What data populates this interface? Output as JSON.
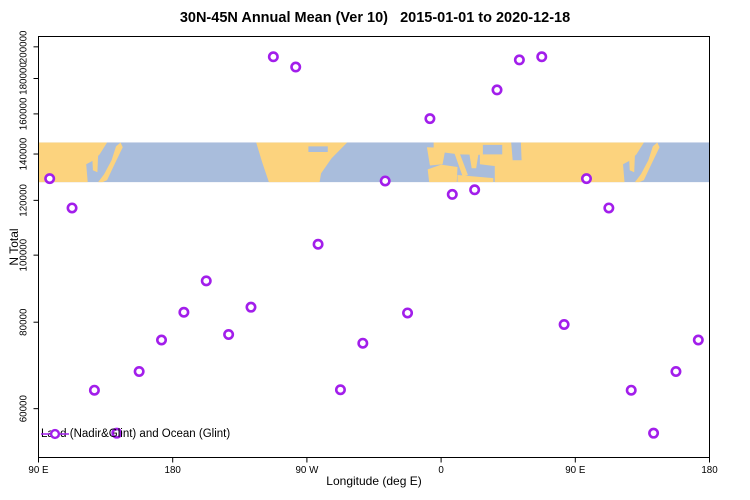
{
  "title": "30N-45N Annual Mean (Ver 10)   2015-01-01 to 2020-12-18",
  "legend": {
    "label": "Land (Nadir&Glint) and Ocean (Glint)"
  },
  "chart_data": {
    "type": "scatter",
    "title": "30N-45N Annual Mean (Ver 10)   2015-01-01 to 2020-12-18",
    "xlabel": "Longitude (deg E)",
    "ylabel": "N Total",
    "x_range": [
      90,
      540
    ],
    "y_range": [
      51000,
      207000
    ],
    "y_scale": "log",
    "grid": false,
    "legend_position": "bottom-left",
    "marker": {
      "shape": "open-circle",
      "color": "#A21EEB",
      "radius": 4.2,
      "stroke_width": 2.6
    },
    "x_ticks": [
      {
        "value": 90,
        "label": "90 E"
      },
      {
        "value": 180,
        "label": "180"
      },
      {
        "value": 270,
        "label": "90 W"
      },
      {
        "value": 360,
        "label": "0"
      },
      {
        "value": 450,
        "label": "90 E"
      },
      {
        "value": 540,
        "label": "180"
      }
    ],
    "y_ticks": [
      {
        "value": 60000,
        "label": "60000"
      },
      {
        "value": 80000,
        "label": "80000"
      },
      {
        "value": 100000,
        "label": "100000"
      },
      {
        "value": 120000,
        "label": "120000"
      },
      {
        "value": 140000,
        "label": "140000"
      },
      {
        "value": 160000,
        "label": "160000"
      },
      {
        "value": 180000,
        "label": "180000"
      },
      {
        "value": 200000,
        "label": "200000"
      }
    ],
    "points": [
      {
        "lon": 97.5,
        "n_total": 129000
      },
      {
        "lon": 112.5,
        "n_total": 117000
      },
      {
        "lon": 127.5,
        "n_total": 63800
      },
      {
        "lon": 142.5,
        "n_total": 55300
      },
      {
        "lon": 157.5,
        "n_total": 67900
      },
      {
        "lon": 172.5,
        "n_total": 75400
      },
      {
        "lon": 187.5,
        "n_total": 82700
      },
      {
        "lon": 202.5,
        "n_total": 91800
      },
      {
        "lon": 217.5,
        "n_total": 76800
      },
      {
        "lon": 232.5,
        "n_total": 84100
      },
      {
        "lon": 247.5,
        "n_total": 193500
      },
      {
        "lon": 262.5,
        "n_total": 187000
      },
      {
        "lon": 277.5,
        "n_total": 103700
      },
      {
        "lon": 292.5,
        "n_total": 63900
      },
      {
        "lon": 307.5,
        "n_total": 74600
      },
      {
        "lon": 322.5,
        "n_total": 128000
      },
      {
        "lon": 337.5,
        "n_total": 82500
      },
      {
        "lon": 352.5,
        "n_total": 157500
      },
      {
        "lon": 367.5,
        "n_total": 122400
      },
      {
        "lon": 382.5,
        "n_total": 124300
      },
      {
        "lon": 397.5,
        "n_total": 173300
      },
      {
        "lon": 412.5,
        "n_total": 191500
      },
      {
        "lon": 427.5,
        "n_total": 193500
      },
      {
        "lon": 442.5,
        "n_total": 79400
      },
      {
        "lon": 457.5,
        "n_total": 129000
      },
      {
        "lon": 472.5,
        "n_total": 117000
      },
      {
        "lon": 487.5,
        "n_total": 63800
      },
      {
        "lon": 502.5,
        "n_total": 55300
      },
      {
        "lon": 517.5,
        "n_total": 67900
      },
      {
        "lon": 532.5,
        "n_total": 75400
      }
    ],
    "map_strip": {
      "band_value_range": [
        127500,
        145500
      ],
      "ocean_color": "#A9BDDC",
      "land_color": "#FCD37E",
      "land": [
        {
          "name": "asia-mainland",
          "pts": [
            [
              90,
              0
            ],
            [
              136,
              0
            ],
            [
              131,
              0.3
            ],
            [
              127,
              0.45
            ],
            [
              122,
              0.55
            ],
            [
              123,
              1
            ],
            [
              90,
              1
            ]
          ]
        },
        {
          "name": "korea-peninsula",
          "pts": [
            [
              126,
              0.33
            ],
            [
              130,
              0.3
            ],
            [
              129.5,
              0.75
            ],
            [
              126.5,
              0.7
            ]
          ]
        },
        {
          "name": "japan-islands",
          "pts": [
            [
              130,
              1
            ],
            [
              134,
              0.8
            ],
            [
              139,
              0.45
            ],
            [
              142,
              0.1
            ],
            [
              145,
              0
            ],
            [
              146.5,
              0.12
            ],
            [
              141,
              0.55
            ],
            [
              136,
              0.95
            ],
            [
              133,
              1
            ]
          ]
        },
        {
          "name": "north-america",
          "pts": [
            [
              236,
              0
            ],
            [
              297,
              0
            ],
            [
              286.5,
              0.4
            ],
            [
              279.5,
              0.78
            ],
            [
              278.5,
              1
            ],
            [
              244.5,
              1
            ],
            [
              240,
              0.5
            ]
          ]
        },
        {
          "name": "iberia",
          "pts": [
            [
              350.5,
              0.12
            ],
            [
              363,
              0.14
            ],
            [
              361,
              0.55
            ],
            [
              352.5,
              0.58
            ]
          ]
        },
        {
          "name": "nw-africa",
          "pts": [
            [
              351,
              0.68
            ],
            [
              360,
              0.56
            ],
            [
              371,
              0.62
            ],
            [
              370.5,
              1
            ],
            [
              352,
              1
            ]
          ]
        },
        {
          "name": "libya-egypt",
          "pts": [
            [
              371,
              0.82
            ],
            [
              395,
              0.9
            ],
            [
              395,
              1
            ],
            [
              371,
              1
            ]
          ]
        },
        {
          "name": "europe-top",
          "pts": [
            [
              355,
              0
            ],
            [
              397,
              0
            ],
            [
              397,
              0.32
            ],
            [
              372,
              0.3
            ],
            [
              355,
              0.22
            ]
          ]
        },
        {
          "name": "italy",
          "pts": [
            [
              369,
              0.28
            ],
            [
              372.5,
              0.28
            ],
            [
              378,
              0.82
            ],
            [
              374.5,
              0.86
            ]
          ]
        },
        {
          "name": "balkans-greece",
          "pts": [
            [
              379,
              0.3
            ],
            [
              385,
              0.3
            ],
            [
              383.5,
              0.65
            ],
            [
              380.5,
              0.65
            ]
          ]
        },
        {
          "name": "anatolia",
          "pts": [
            [
              386,
              0.22
            ],
            [
              397,
              0.22
            ],
            [
              397,
              0.6
            ],
            [
              386,
              0.55
            ]
          ]
        },
        {
          "name": "asia-east",
          "pts": [
            [
              396,
              0
            ],
            [
              496,
              0
            ],
            [
              491,
              0.3
            ],
            [
              487,
              0.45
            ],
            [
              482,
              0.55
            ],
            [
              483,
              1
            ],
            [
              396,
              1
            ]
          ]
        },
        {
          "name": "korea-peninsula-2",
          "pts": [
            [
              486,
              0.33
            ],
            [
              490,
              0.3
            ],
            [
              489.5,
              0.75
            ],
            [
              486.5,
              0.7
            ]
          ]
        },
        {
          "name": "japan-islands-2",
          "pts": [
            [
              490,
              1
            ],
            [
              494,
              0.8
            ],
            [
              499,
              0.45
            ],
            [
              502,
              0.1
            ],
            [
              505,
              0
            ],
            [
              506.5,
              0.12
            ],
            [
              501,
              0.55
            ],
            [
              496,
              0.95
            ],
            [
              493,
              1
            ]
          ]
        }
      ],
      "water": [
        {
          "name": "great-lakes",
          "pts": [
            [
              271,
              0.1
            ],
            [
              284,
              0.1
            ],
            [
              284,
              0.24
            ],
            [
              271,
              0.24
            ]
          ]
        },
        {
          "name": "black-sea",
          "pts": [
            [
              388,
              0.06
            ],
            [
              401,
              0.06
            ],
            [
              401,
              0.3
            ],
            [
              388,
              0.3
            ]
          ]
        },
        {
          "name": "caspian-sea",
          "pts": [
            [
              407,
              0
            ],
            [
              413.5,
              0
            ],
            [
              414,
              0.45
            ],
            [
              408,
              0.45
            ]
          ]
        }
      ]
    }
  }
}
